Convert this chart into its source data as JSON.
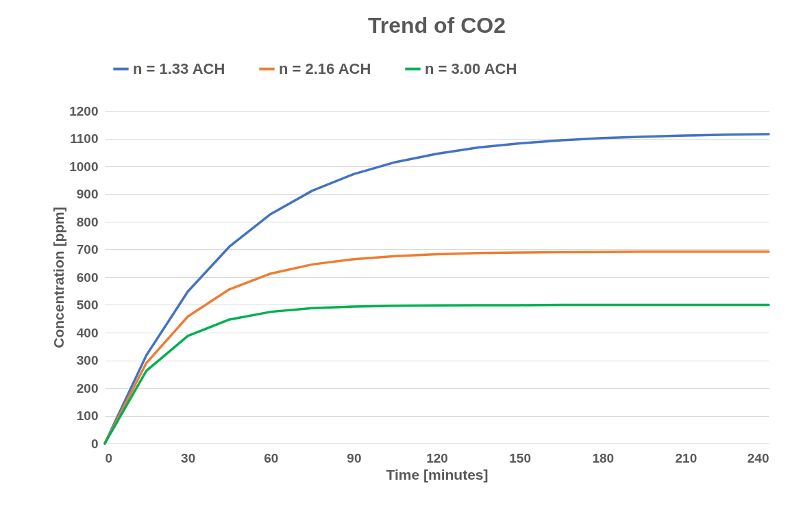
{
  "chart_data": {
    "type": "line",
    "title": "Trend of CO2",
    "xlabel": "Time [minutes]",
    "ylabel": "Concentration [ppm]",
    "x": [
      0,
      15,
      30,
      45,
      60,
      75,
      90,
      105,
      120,
      135,
      150,
      165,
      180,
      195,
      210,
      225,
      240
    ],
    "series": [
      {
        "name": "n = 1.33 ACH",
        "color": "#4472c4",
        "values": [
          0,
          318,
          548,
          710,
          828,
          912,
          972,
          1015,
          1045,
          1068,
          1083,
          1094,
          1102,
          1107,
          1111,
          1114,
          1116
        ]
      },
      {
        "name": "n = 2.16 ACH",
        "color": "#ed7d31",
        "values": [
          0,
          290,
          458,
          556,
          613,
          646,
          665,
          676,
          683,
          687,
          689,
          690,
          691,
          692,
          692,
          692,
          692
        ]
      },
      {
        "name": "n = 3.00 ACH",
        "color": "#00b050",
        "values": [
          0,
          262,
          388,
          447,
          475,
          488,
          494,
          497,
          498,
          499,
          499,
          500,
          500,
          500,
          500,
          500,
          500
        ]
      }
    ],
    "xlim": [
      0,
      240
    ],
    "xticks": [
      0,
      30,
      60,
      90,
      120,
      150,
      180,
      210,
      240
    ],
    "ylim": [
      0,
      1200
    ],
    "yticks": [
      0,
      100,
      200,
      300,
      400,
      500,
      600,
      700,
      800,
      900,
      1000,
      1100,
      1200
    ],
    "grid": "y",
    "legend": "top",
    "marker": "none",
    "line_style": "solid"
  }
}
